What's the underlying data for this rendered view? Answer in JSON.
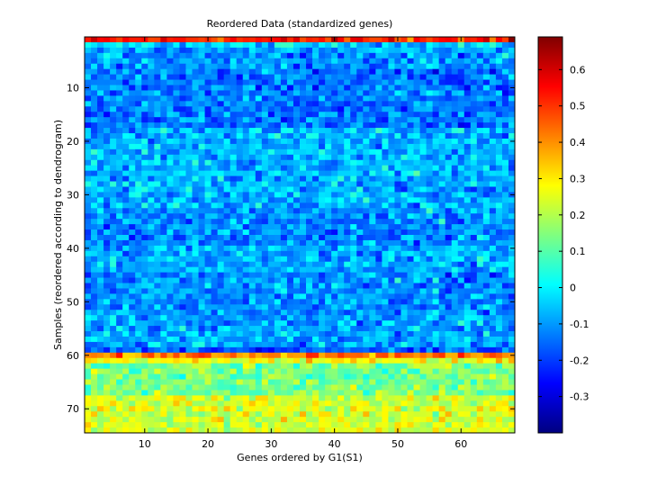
{
  "chart_data": {
    "type": "heatmap",
    "title": "Reordered Data (standardized genes)",
    "xlabel": "Genes ordered by G1(S1)",
    "ylabel": "Samples (reordered according to dendrogram)",
    "n_cols": 68,
    "n_rows": 74,
    "xlim": [
      0.5,
      68.5
    ],
    "ylim": [
      0.5,
      74.5
    ],
    "x_ticks": [
      10,
      20,
      30,
      40,
      50,
      60
    ],
    "y_ticks": [
      10,
      20,
      30,
      40,
      50,
      60,
      70
    ],
    "colorbar": {
      "range": [
        -0.4,
        0.69
      ],
      "ticks": [
        -0.3,
        -0.2,
        -0.1,
        0,
        0.1,
        0.2,
        0.3,
        0.4,
        0.5,
        0.6
      ],
      "tick_labels": [
        "-0.3",
        "-0.2",
        "-0.1",
        "0",
        "0.1",
        "0.2",
        "0.3",
        "0.4",
        "0.5",
        "0.6"
      ],
      "colormap": "jet"
    },
    "row_profile": [
      {
        "rows": [
          1,
          1
        ],
        "mean": 0.52
      },
      {
        "rows": [
          2,
          2
        ],
        "mean": -0.04
      },
      {
        "rows": [
          3,
          6
        ],
        "mean": -0.1
      },
      {
        "rows": [
          7,
          17
        ],
        "mean": -0.14
      },
      {
        "rows": [
          18,
          32
        ],
        "mean": -0.07
      },
      {
        "rows": [
          33,
          39
        ],
        "mean": -0.12
      },
      {
        "rows": [
          40,
          44
        ],
        "mean": -0.08
      },
      {
        "rows": [
          45,
          52
        ],
        "mean": -0.11
      },
      {
        "rows": [
          53,
          58
        ],
        "mean": -0.09
      },
      {
        "rows": [
          59,
          59
        ],
        "mean": -0.17
      },
      {
        "rows": [
          60,
          60
        ],
        "mean": 0.42
      },
      {
        "rows": [
          61,
          61
        ],
        "mean": 0.28
      },
      {
        "rows": [
          62,
          67
        ],
        "mean": 0.14
      },
      {
        "rows": [
          68,
          74
        ],
        "mean": 0.24
      }
    ],
    "noise": 0.07
  }
}
